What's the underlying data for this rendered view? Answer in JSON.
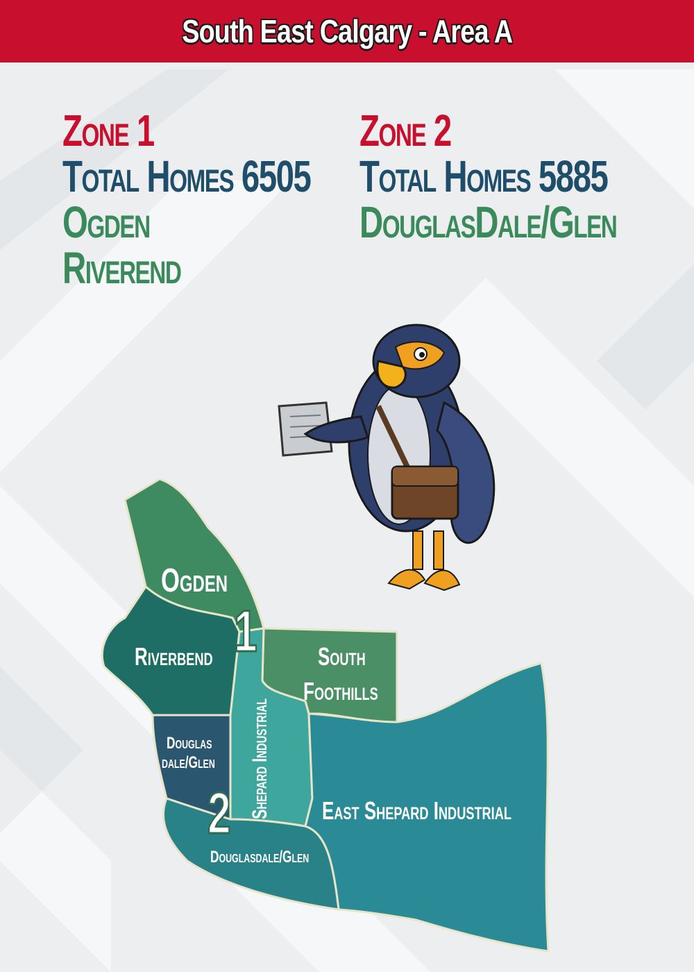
{
  "header": {
    "title": "South East Calgary - Area A"
  },
  "zones": [
    {
      "title": "Zone 1",
      "total": "Total Homes 6505",
      "areas": [
        "Ogden",
        "Riverend"
      ]
    },
    {
      "title": "Zone 2",
      "total": "Total Homes 5885",
      "areas": [
        "DouglasDale/Glen"
      ]
    }
  ],
  "map": {
    "labels": {
      "ogden": "Ogden",
      "riverbend": "Riverbend",
      "south_1": "South",
      "south_2": "Foothills",
      "douglas_1": "Douglas",
      "douglas_2": "dale/Glen",
      "shepard": "Shepard Industrial",
      "east_shepard": "East Shepard Industrial",
      "douglasdale_glen": "Douglasdale/Glen",
      "zone_1_marker": "1",
      "zone_2_marker": "2"
    },
    "colors": {
      "ogden": "#3e8a61",
      "riverbend": "#1e6e65",
      "south_foothills": "#4a8f66",
      "shepard_industrial": "#3ea69c",
      "douglas_dale": "#2b5670",
      "douglasdale_glen": "#288288",
      "east_shepard": "#2a8a96"
    }
  }
}
